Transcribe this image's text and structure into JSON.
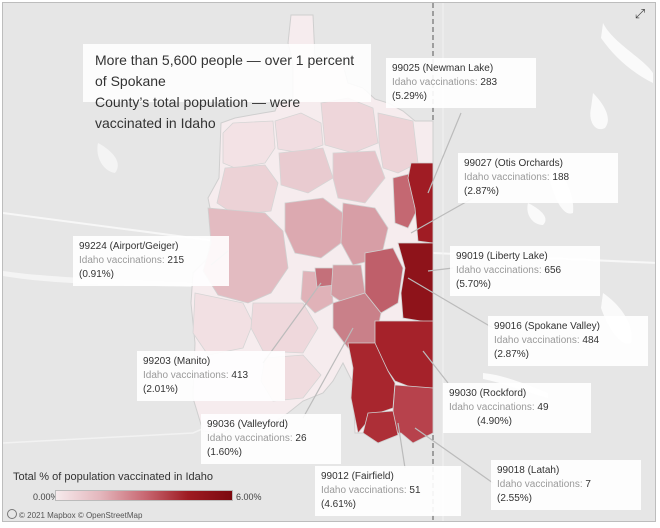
{
  "headline": {
    "line1": "More than 5,600 people — over 1 percent of Spokane",
    "line2": "County’s total population — were  vaccinated in Idaho"
  },
  "callouts": [
    {
      "zip": "99025 (Newman Lake)",
      "label": "Idaho vaccinations:",
      "count": "283",
      "pct": "(5.29%)"
    },
    {
      "zip": "99027 (Otis Orchards)",
      "label": "Idaho vaccinations:",
      "count": "188",
      "pct": "(2.87%)"
    },
    {
      "zip": "99224 (Airport/Geiger)",
      "label": "Idaho vaccinations:",
      "count": "215",
      "pct": "(0.91%)"
    },
    {
      "zip": "99019 (Liberty Lake)",
      "label": "Idaho vaccinations:",
      "count": "656",
      "pct": "(5.70%)"
    },
    {
      "zip": "99016 (Spokane Valley)",
      "label": "Idaho vaccinations:",
      "count": "484",
      "pct": "(2.87%)"
    },
    {
      "zip": "99203 (Manito)",
      "label": "Idaho vaccinations:",
      "count": "413",
      "pct": "(2.01%)"
    },
    {
      "zip": "99030 (Rockford)",
      "label": "Idaho vaccinations:",
      "count": "49",
      "pct": "(4.90%)"
    },
    {
      "zip": "99036 (Valleyford)",
      "label": "Idaho vaccinations:",
      "count": "26",
      "pct": "(1.60%)"
    },
    {
      "zip": "99018 (Latah)",
      "label": "Idaho vaccinations:",
      "count": "7",
      "pct": "(2.55%)"
    },
    {
      "zip": "99012 (Fairfield)",
      "label": "Idaho vaccinations:",
      "count": "51",
      "pct": "(4.61%)"
    }
  ],
  "legend": {
    "title": "Total % of population vaccinated in Idaho",
    "min": "0.00%",
    "max": "6.00%",
    "colors": [
      "#f6eaec",
      "#e4b7bd",
      "#c96a74",
      "#9e1b22",
      "#7c0a10"
    ]
  },
  "attribution": "© 2021 Mapbox © OpenStreetMap",
  "controls": {
    "expand_icon": "expand-arrows-icon"
  }
}
